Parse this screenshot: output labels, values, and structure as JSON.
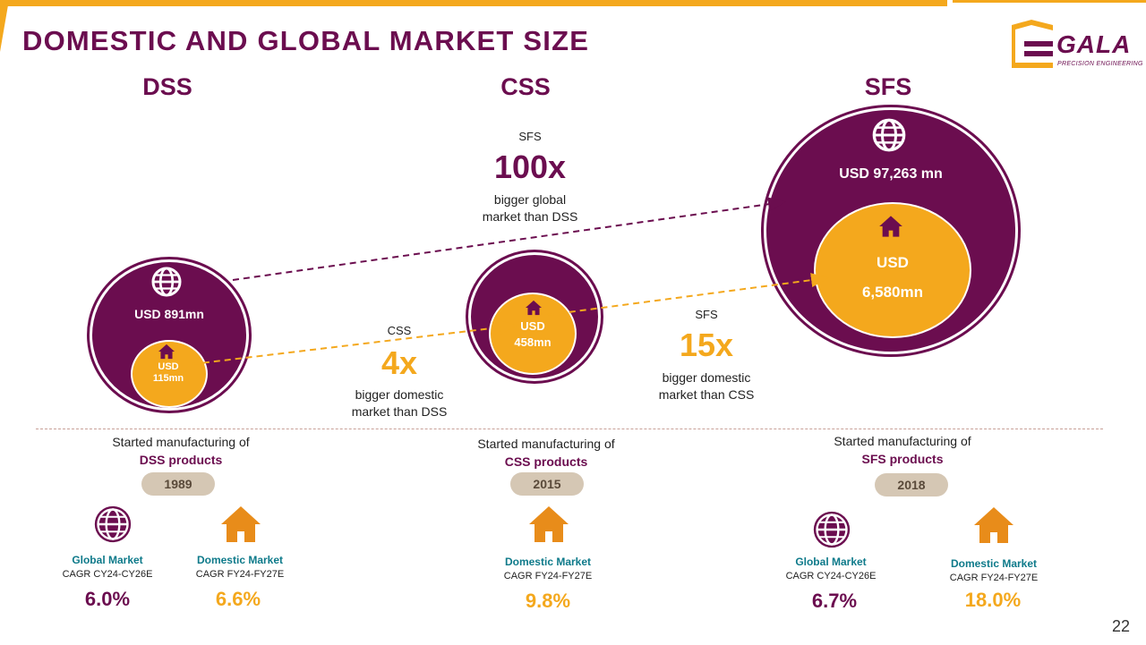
{
  "title": "DOMESTIC AND GLOBAL MARKET SIZE",
  "logo": {
    "name": "GALA",
    "tagline": "PRECISION ENGINEERING"
  },
  "segments": {
    "dss": {
      "name": "DSS",
      "global": "USD 891mn",
      "domestic_line1": "USD",
      "domestic_line2": "115mn"
    },
    "css": {
      "name": "CSS",
      "domestic_line1": "USD",
      "domestic_line2": "458mn"
    },
    "sfs": {
      "name": "SFS",
      "global": "USD 97,263 mn",
      "domestic_line1": "USD",
      "domestic_line2": "6,580mn"
    }
  },
  "comparisons": {
    "sfs_global": {
      "label": "SFS",
      "multiple": "100x",
      "desc1": "bigger global",
      "desc2": "market than DSS"
    },
    "css_domestic": {
      "label": "CSS",
      "multiple": "4x",
      "desc1": "bigger domestic",
      "desc2": "market than DSS"
    },
    "sfs_domestic": {
      "label": "SFS",
      "multiple": "15x",
      "desc1": "bigger domestic",
      "desc2": "market than CSS"
    }
  },
  "started": {
    "dss": {
      "text": "Started manufacturing of",
      "product": "DSS products",
      "year": "1989"
    },
    "css": {
      "text": "Started manufacturing of",
      "product": "CSS products",
      "year": "2015"
    },
    "sfs": {
      "text": "Started manufacturing of",
      "product": "SFS products",
      "year": "2018"
    }
  },
  "cagr": {
    "dss_global": {
      "market": "Global Market",
      "period": "CAGR CY24-CY26E",
      "value": "6.0%"
    },
    "dss_domestic": {
      "market": "Domestic Market",
      "period": "CAGR FY24-FY27E",
      "value": "6.6%"
    },
    "css_domestic": {
      "market": "Domestic Market",
      "period": "CAGR FY24-FY27E",
      "value": "9.8%"
    },
    "sfs_global": {
      "market": "Global Market",
      "period": "CAGR CY24-CY26E",
      "value": "6.7%"
    },
    "sfs_domestic": {
      "market": "Domestic Market",
      "period": "CAGR FY24-FY27E",
      "value": "18.0%"
    }
  },
  "page_number": "22",
  "colors": {
    "purple": "#6B0D4F",
    "orange": "#F4A81D",
    "teal": "#0E7A8A",
    "pill": "#D5C7B4"
  }
}
